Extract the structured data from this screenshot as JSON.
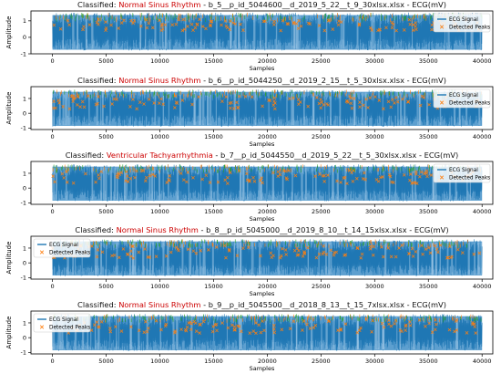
{
  "chart_data": [
    {
      "type": "line",
      "title_prefix": "Classified: ",
      "title_class": "Normal Sinus Rhythm",
      "title_suffix": " - b_5__p_id_5044600__d_2019_5_22__t_9_30xlsx.xlsx - ECG(mV)",
      "xlabel": "Samples",
      "ylabel": "Amplitude",
      "xlim": [
        -2000,
        41000
      ],
      "ylim": [
        -1,
        1.6
      ],
      "xticks": [
        0,
        5000,
        10000,
        15000,
        20000,
        25000,
        30000,
        35000,
        40000
      ],
      "yticks": [
        -1,
        0,
        1
      ],
      "grid": false,
      "legend_position": "right",
      "series": [
        {
          "name": "ECG Signal",
          "kind": "line",
          "color": "#1f77b4",
          "x_range": [
            0,
            40000
          ],
          "y_range": [
            -0.8,
            1.5
          ]
        },
        {
          "name": "Detected Peaks",
          "kind": "scatter",
          "marker": "x",
          "color": "#ff7f0e",
          "y_range": [
            0.4,
            1.1
          ]
        }
      ]
    },
    {
      "type": "line",
      "title_prefix": "Classified: ",
      "title_class": "Normal Sinus Rhythm",
      "title_suffix": " - b_6__p_id_5044250__d_2019_2_15__t_5_30xlsx.xlsx - ECG(mV)",
      "xlabel": "Samples",
      "ylabel": "Amplitude",
      "xlim": [
        -2000,
        41000
      ],
      "ylim": [
        -1.1,
        1.8
      ],
      "xticks": [
        0,
        5000,
        10000,
        15000,
        20000,
        25000,
        30000,
        35000,
        40000
      ],
      "yticks": [
        -1,
        0,
        1
      ],
      "grid": false,
      "legend_position": "right",
      "series": [
        {
          "name": "ECG Signal",
          "kind": "line",
          "color": "#1f77b4",
          "x_range": [
            0,
            40000
          ],
          "y_range": [
            -0.9,
            1.6
          ]
        },
        {
          "name": "Detected Peaks",
          "kind": "scatter",
          "marker": "x",
          "color": "#ff7f0e",
          "y_range": [
            0.3,
            1.2
          ]
        }
      ]
    },
    {
      "type": "line",
      "title_prefix": "Classified: ",
      "title_class": "Ventricular Tachyarrhythmia",
      "title_suffix": " - b_7__p_id_5044550__d_2019_5_22__t_5_30xlsx.xlsx - ECG(mV)",
      "xlabel": "Samples",
      "ylabel": "",
      "xlim": [
        -2000,
        41000
      ],
      "ylim": [
        -1.1,
        1.8
      ],
      "xticks": [
        0,
        5000,
        10000,
        15000,
        20000,
        25000,
        30000,
        35000,
        40000
      ],
      "yticks": [
        -1,
        0,
        1
      ],
      "grid": false,
      "legend_position": "right",
      "series": [
        {
          "name": "ECG Signal",
          "kind": "line",
          "color": "#1f77b4",
          "x_range": [
            0,
            40000
          ],
          "y_range": [
            -0.9,
            1.6
          ]
        },
        {
          "name": "Detected Peaks",
          "kind": "scatter",
          "marker": "x",
          "color": "#ff7f0e",
          "y_range": [
            0.3,
            1.2
          ]
        }
      ]
    },
    {
      "type": "line",
      "title_prefix": "Classified: ",
      "title_class": "Normal Sinus Rhythm",
      "title_suffix": " - b_8__p_id_5045000__d_2019_8_10__t_14_15xlsx.xlsx - ECG(mV)",
      "xlabel": "Samples",
      "ylabel": "Amplitude",
      "xlim": [
        -2000,
        41000
      ],
      "ylim": [
        -1.1,
        1.8
      ],
      "xticks": [
        0,
        5000,
        10000,
        15000,
        20000,
        25000,
        30000,
        35000,
        40000
      ],
      "yticks": [
        -1,
        0,
        1
      ],
      "grid": false,
      "legend_position": "left",
      "series": [
        {
          "name": "ECG Signal",
          "kind": "line",
          "color": "#1f77b4",
          "x_range": [
            0,
            40000
          ],
          "y_range": [
            -0.9,
            1.6
          ]
        },
        {
          "name": "Detected Peaks",
          "kind": "scatter",
          "marker": "x",
          "color": "#ff7f0e",
          "y_range": [
            0.3,
            1.2
          ]
        }
      ]
    },
    {
      "type": "line",
      "title_prefix": "Classified: ",
      "title_class": "Normal Sinus Rhythm",
      "title_suffix": " - b_9__p_id_5045500__d_2018_8_13__t_15_7xlsx.xlsx - ECG(mV)",
      "xlabel": "Samples",
      "ylabel": "Amplitude",
      "xlim": [
        -2000,
        41000
      ],
      "ylim": [
        -1.1,
        1.8
      ],
      "xticks": [
        0,
        5000,
        10000,
        15000,
        20000,
        25000,
        30000,
        35000,
        40000
      ],
      "yticks": [
        -1,
        0,
        1
      ],
      "grid": false,
      "legend_position": "left",
      "series": [
        {
          "name": "ECG Signal",
          "kind": "line",
          "color": "#1f77b4",
          "x_range": [
            0,
            40000
          ],
          "y_range": [
            -0.9,
            1.6
          ]
        },
        {
          "name": "Detected Peaks",
          "kind": "scatter",
          "marker": "x",
          "color": "#ff7f0e",
          "y_range": [
            0.3,
            1.2
          ]
        }
      ]
    }
  ],
  "colors": {
    "class_highlight": "#cc0000",
    "signal": "#1f77b4",
    "signal_fill": "#5d9fcf",
    "peaks": "#ff7f0e",
    "green_tips": "#2ca02c"
  }
}
